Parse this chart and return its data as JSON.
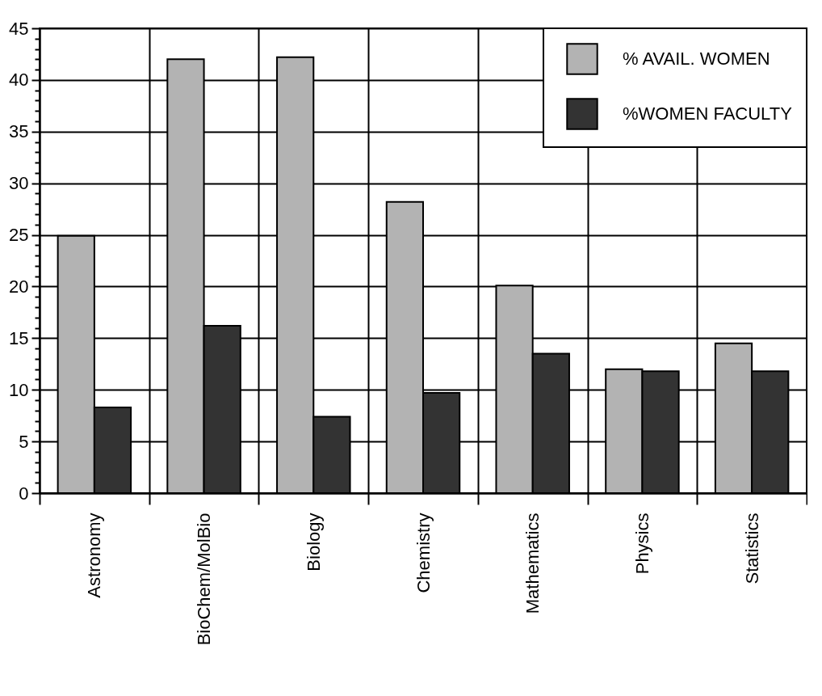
{
  "chart_data": {
    "type": "bar",
    "categories": [
      "Astronomy",
      "BioChem/MolBio",
      "Biology",
      "Chemistry",
      "Mathematics",
      "Physics",
      "Statistics"
    ],
    "series": [
      {
        "name": "% AVAIL. WOMEN",
        "color": "#b3b3b3",
        "values": [
          24.9,
          42.0,
          42.2,
          28.2,
          20.1,
          12.0,
          14.5
        ]
      },
      {
        "name": "%WOMEN FACULTY",
        "color": "#333333",
        "values": [
          8.3,
          16.2,
          7.4,
          9.7,
          13.5,
          11.8,
          11.8
        ]
      }
    ],
    "ylim": [
      0,
      45
    ],
    "yticks": [
      0,
      {
        "value": 1,
        "label": null
      },
      {
        "value": 2,
        "label": null
      },
      {
        "value": 3,
        "label": null
      },
      {
        "value": 4,
        "label": null
      },
      5,
      {
        "value": 6,
        "label": null
      },
      {
        "value": 7,
        "label": null
      },
      {
        "value": 8,
        "label": null
      },
      {
        "value": 9,
        "label": null
      },
      10,
      {
        "value": 11,
        "label": null
      },
      {
        "value": 12,
        "label": null
      },
      {
        "value": 13,
        "label": null
      },
      {
        "value": 14,
        "label": null
      },
      15,
      {
        "value": 16,
        "label": null
      },
      {
        "value": 17,
        "label": null
      },
      {
        "value": 18,
        "label": null
      },
      {
        "value": 19,
        "label": null
      },
      20,
      {
        "value": 21,
        "label": null
      },
      {
        "value": 22,
        "label": null
      },
      {
        "value": 23,
        "label": null
      },
      {
        "value": 24,
        "label": null
      },
      25,
      {
        "value": 26,
        "label": null
      },
      {
        "value": 27,
        "label": null
      },
      {
        "value": 28,
        "label": null
      },
      {
        "value": 29,
        "label": null
      },
      30,
      {
        "value": 31,
        "label": null
      },
      {
        "value": 32,
        "label": null
      },
      {
        "value": 33,
        "label": null
      },
      {
        "value": 34,
        "label": null
      },
      35,
      {
        "value": 36,
        "label": null
      },
      {
        "value": 37,
        "label": null
      },
      {
        "value": 38,
        "label": null
      },
      {
        "value": 39,
        "label": null
      },
      40,
      {
        "value": 41,
        "label": null
      },
      {
        "value": 42,
        "label": null
      },
      {
        "value": 43,
        "label": null
      },
      {
        "value": 44,
        "label": null
      },
      45
    ],
    "grid": true,
    "legend": "top right"
  }
}
